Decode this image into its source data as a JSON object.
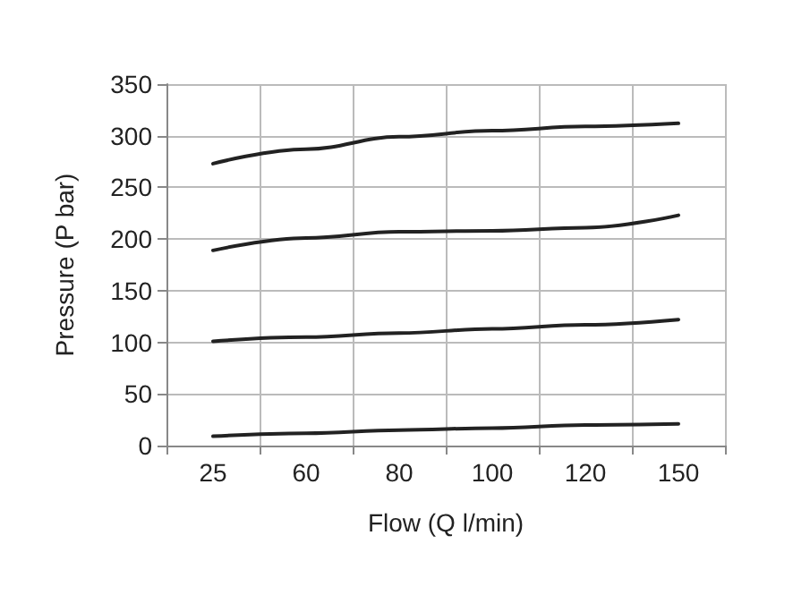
{
  "chart_data": {
    "type": "line",
    "xlabel": "Flow (Q l/min)",
    "ylabel": "Pressure (P bar)",
    "categories": [
      "25",
      "60",
      "80",
      "100",
      "120",
      "150"
    ],
    "series": [
      {
        "color": "#222222",
        "values": [
          273,
          287,
          299,
          305,
          309,
          312
        ]
      },
      {
        "color": "#222222",
        "values": [
          189,
          201,
          207,
          208,
          211,
          223
        ]
      },
      {
        "color": "#222222",
        "values": [
          101,
          105,
          109,
          113,
          117,
          122
        ]
      },
      {
        "color": "#222222",
        "values": [
          9,
          12,
          15,
          17,
          20,
          21
        ]
      }
    ],
    "ylim": [
      0,
      350
    ],
    "yticks": [
      0,
      50,
      100,
      150,
      200,
      250,
      300,
      350
    ],
    "grid": true,
    "marker": "none",
    "line_style": "solid"
  }
}
